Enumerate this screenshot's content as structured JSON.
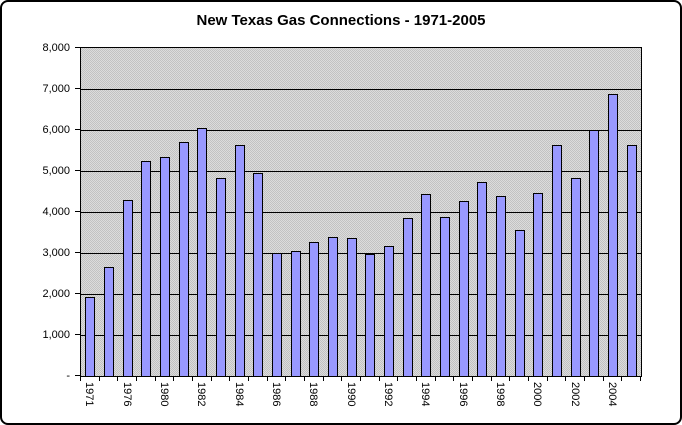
{
  "title": "New Texas Gas Connections - 1971-2005",
  "chart_data": {
    "type": "bar",
    "title": "New Texas Gas Connections - 1971-2005",
    "xlabel": "",
    "ylabel": "",
    "ylim": [
      0,
      8000
    ],
    "grid": true,
    "legend": false,
    "plot_background": "gray-dithered",
    "y_ticks": [
      {
        "label": "8,000",
        "value": 8000
      },
      {
        "label": "7,000",
        "value": 7000
      },
      {
        "label": "6,000",
        "value": 6000
      },
      {
        "label": "5,000",
        "value": 5000
      },
      {
        "label": "4,000",
        "value": 4000
      },
      {
        "label": "3,000",
        "value": 3000
      },
      {
        "label": "2,000",
        "value": 2000
      },
      {
        "label": "1,000",
        "value": 1000
      },
      {
        "label": "-",
        "value": 0
      }
    ],
    "bars": [
      {
        "label": "1971",
        "value": 1920
      },
      {
        "label": "",
        "value": 2660
      },
      {
        "label": "1976",
        "value": 4300
      },
      {
        "label": "",
        "value": 5240
      },
      {
        "label": "1980",
        "value": 5350
      },
      {
        "label": "",
        "value": 5700
      },
      {
        "label": "1982",
        "value": 6050
      },
      {
        "label": "",
        "value": 4830
      },
      {
        "label": "1984",
        "value": 5630
      },
      {
        "label": "",
        "value": 4960
      },
      {
        "label": "1986",
        "value": 3000
      },
      {
        "label": "",
        "value": 3040
      },
      {
        "label": "1988",
        "value": 3280
      },
      {
        "label": "",
        "value": 3400
      },
      {
        "label": "1990",
        "value": 3360
      },
      {
        "label": "",
        "value": 2980
      },
      {
        "label": "1992",
        "value": 3170
      },
      {
        "label": "",
        "value": 3850
      },
      {
        "label": "1994",
        "value": 4430
      },
      {
        "label": "",
        "value": 3890
      },
      {
        "label": "1996",
        "value": 4280
      },
      {
        "label": "",
        "value": 4720
      },
      {
        "label": "1998",
        "value": 4400
      },
      {
        "label": "",
        "value": 3560
      },
      {
        "label": "2000",
        "value": 4470
      },
      {
        "label": "",
        "value": 5630
      },
      {
        "label": "2002",
        "value": 4830
      },
      {
        "label": "",
        "value": 6000
      },
      {
        "label": "2004",
        "value": 6890
      },
      {
        "label": "",
        "value": 5630
      }
    ],
    "colors": {
      "bar_fill": "#9999FF",
      "bar_border": "#000000",
      "gridline": "#000000",
      "plot_bg_light": "#DCDCDC",
      "plot_bg_dark": "#C2C2C2",
      "frame_bg": "#FFFFFF",
      "frame_border": "#000000",
      "text": "#000000"
    }
  }
}
